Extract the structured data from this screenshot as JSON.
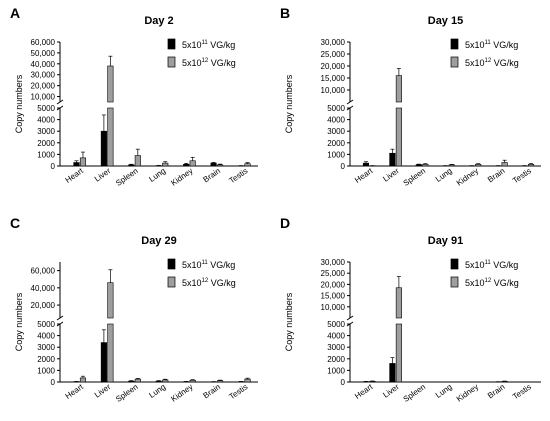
{
  "chart_data": [
    {
      "type": "bar",
      "panel": "A",
      "title": "Day 2",
      "ylabel": "Copy numbers",
      "xlabel": "",
      "broken_axis": true,
      "ylim_lower": [
        0,
        5000
      ],
      "ylim_upper": [
        5000,
        60000
      ],
      "yticks_lower": [
        "0",
        "1000",
        "2000",
        "3000",
        "4000",
        "5000"
      ],
      "yticks_upper": [
        "10,000",
        "20,000",
        "30,000",
        "40,000",
        "50,000",
        "60,000"
      ],
      "categories": [
        "Heart",
        "Liver",
        "Spleen",
        "Lung",
        "Kidney",
        "Brain",
        "Testis"
      ],
      "legend_position": "top-right",
      "series": [
        {
          "name_base": "5x10",
          "name_exp": "11",
          "name_unit": " VG/kg",
          "color": "#000000",
          "values": [
            300,
            3000,
            100,
            30,
            150,
            250,
            20
          ],
          "errors": [
            150,
            1400,
            50,
            20,
            80,
            60,
            15
          ]
        },
        {
          "name_base": "5x10",
          "name_exp": "12",
          "name_unit": " VG/kg",
          "color": "#9e9e9e",
          "values": [
            700,
            38000,
            900,
            250,
            450,
            100,
            200
          ],
          "errors": [
            500,
            9000,
            550,
            120,
            300,
            60,
            90
          ]
        }
      ]
    },
    {
      "type": "bar",
      "panel": "B",
      "title": "Day 15",
      "ylabel": "Copy numbers",
      "xlabel": "",
      "broken_axis": true,
      "ylim_lower": [
        0,
        5000
      ],
      "ylim_upper": [
        5000,
        30000
      ],
      "yticks_lower": [
        "0",
        "1000",
        "2000",
        "3000",
        "4000",
        "5000"
      ],
      "yticks_upper": [
        "10,000",
        "15,000",
        "20,000",
        "25,000",
        "30,000"
      ],
      "categories": [
        "Heart",
        "Liver",
        "Spleen",
        "Lung",
        "Kidney",
        "Brain",
        "Testis"
      ],
      "legend_position": "top-right",
      "series": [
        {
          "name_base": "5x10",
          "name_exp": "11",
          "name_unit": " VG/kg",
          "color": "#000000",
          "values": [
            250,
            1100,
            120,
            20,
            20,
            20,
            20
          ],
          "errors": [
            120,
            350,
            40,
            15,
            15,
            15,
            15
          ]
        },
        {
          "name_base": "5x10",
          "name_exp": "12",
          "name_unit": " VG/kg",
          "color": "#9e9e9e",
          "values": [
            20,
            16000,
            150,
            100,
            150,
            300,
            150
          ],
          "errors": [
            15,
            3000,
            50,
            40,
            50,
            200,
            60
          ]
        }
      ]
    },
    {
      "type": "bar",
      "panel": "C",
      "title": "Day 29",
      "ylabel": "Copy numbers",
      "xlabel": "",
      "broken_axis": true,
      "ylim_lower": [
        0,
        5000
      ],
      "ylim_upper": [
        5000,
        70000
      ],
      "yticks_lower": [
        "0",
        "1000",
        "2000",
        "3000",
        "4000",
        "5000"
      ],
      "yticks_upper": [
        "20,000",
        "40,000",
        "60,000"
      ],
      "categories": [
        "Heart",
        "Liver",
        "Spleen",
        "Lung",
        "Kidney",
        "Brain",
        "Testis"
      ],
      "legend_position": "top-right",
      "series": [
        {
          "name_base": "5x10",
          "name_exp": "11",
          "name_unit": " VG/kg",
          "color": "#000000",
          "values": [
            30,
            3400,
            80,
            80,
            30,
            20,
            30
          ],
          "errors": [
            20,
            1100,
            40,
            40,
            20,
            15,
            20
          ]
        },
        {
          "name_base": "5x10",
          "name_exp": "12",
          "name_unit": " VG/kg",
          "color": "#9e9e9e",
          "values": [
            350,
            46000,
            250,
            180,
            150,
            120,
            250
          ],
          "errors": [
            150,
            15000,
            60,
            60,
            50,
            40,
            80
          ]
        }
      ]
    },
    {
      "type": "bar",
      "panel": "D",
      "title": "Day 91",
      "ylabel": "Copy numbers",
      "xlabel": "",
      "broken_axis": true,
      "ylim_lower": [
        0,
        5000
      ],
      "ylim_upper": [
        5000,
        30000
      ],
      "yticks_lower": [
        "0",
        "1000",
        "2000",
        "3000",
        "4000",
        "5000"
      ],
      "yticks_upper": [
        "10,000",
        "15,000",
        "20,000",
        "25,000",
        "30,000"
      ],
      "categories": [
        "Heart",
        "Liver",
        "Spleen",
        "Lung",
        "Kidney",
        "Brain",
        "Testis"
      ],
      "legend_position": "top-right",
      "series": [
        {
          "name_base": "5x10",
          "name_exp": "11",
          "name_unit": " VG/kg",
          "color": "#000000",
          "values": [
            30,
            1600,
            0,
            0,
            0,
            20,
            0
          ],
          "errors": [
            20,
            500,
            0,
            0,
            0,
            10,
            0
          ]
        },
        {
          "name_base": "5x10",
          "name_exp": "12",
          "name_unit": " VG/kg",
          "color": "#9e9e9e",
          "values": [
            60,
            18500,
            0,
            0,
            0,
            60,
            0
          ],
          "errors": [
            30,
            5000,
            0,
            0,
            0,
            20,
            0
          ]
        }
      ]
    }
  ]
}
